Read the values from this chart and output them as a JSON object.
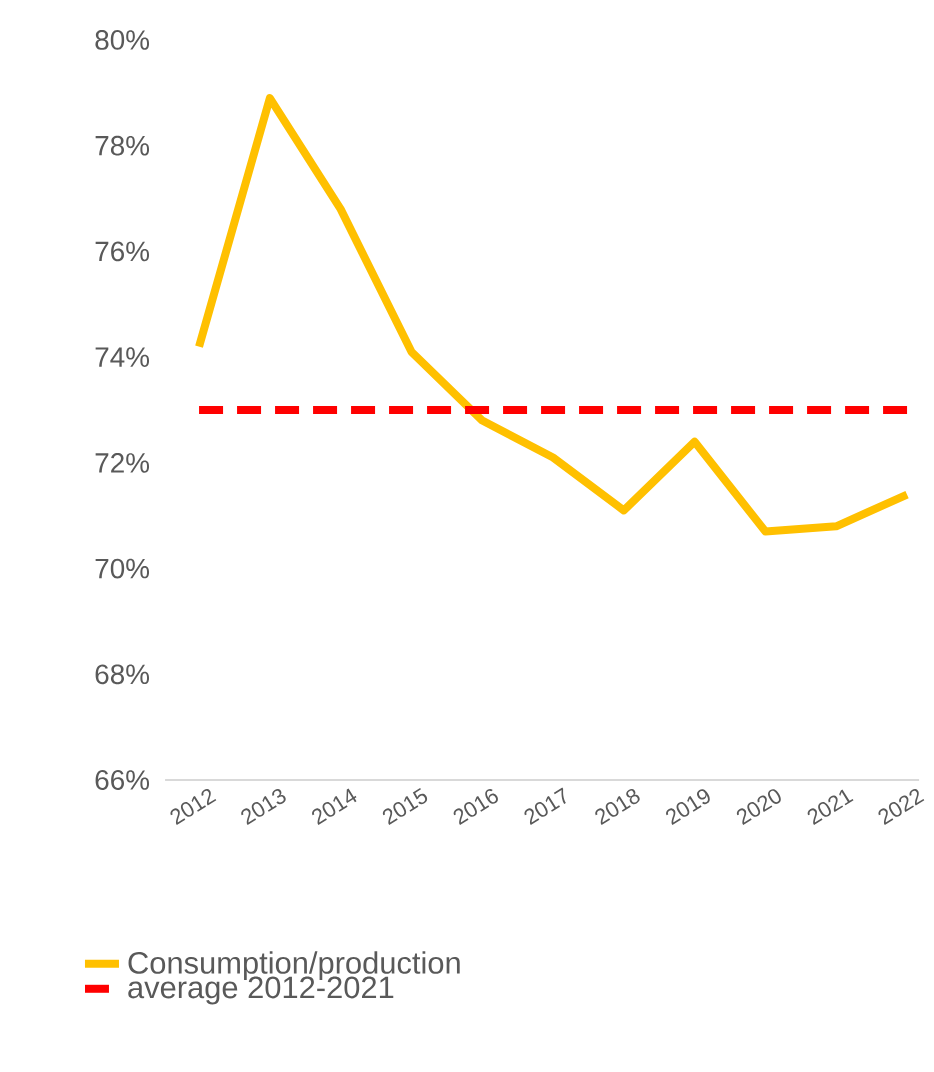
{
  "chart_data": {
    "type": "line",
    "categories": [
      "2012",
      "2013",
      "2014",
      "2015",
      "2016",
      "2017",
      "2018",
      "2019",
      "2020",
      "2021",
      "2022"
    ],
    "series": [
      {
        "name": "Consumption/production",
        "color": "#ffc000",
        "line_style": "solid",
        "values": [
          74.2,
          78.9,
          76.8,
          74.1,
          72.8,
          72.1,
          71.1,
          72.4,
          70.7,
          70.8,
          71.4
        ]
      },
      {
        "name": "average 2012-2021",
        "color": "#ff0000",
        "line_style": "dashed",
        "values": [
          73.0,
          73.0,
          73.0,
          73.0,
          73.0,
          73.0,
          73.0,
          73.0,
          73.0,
          73.0,
          73.0
        ]
      }
    ],
    "ylim": [
      66,
      80
    ],
    "yticks": [
      {
        "value": 66,
        "label": "66%"
      },
      {
        "value": 68,
        "label": "68%"
      },
      {
        "value": 70,
        "label": "70%"
      },
      {
        "value": 72,
        "label": "72%"
      },
      {
        "value": 74,
        "label": "74%"
      },
      {
        "value": 76,
        "label": "76%"
      },
      {
        "value": 78,
        "label": "78%"
      },
      {
        "value": 80,
        "label": "80%"
      }
    ],
    "grid": false,
    "legend": "bottom",
    "marker": "none"
  }
}
